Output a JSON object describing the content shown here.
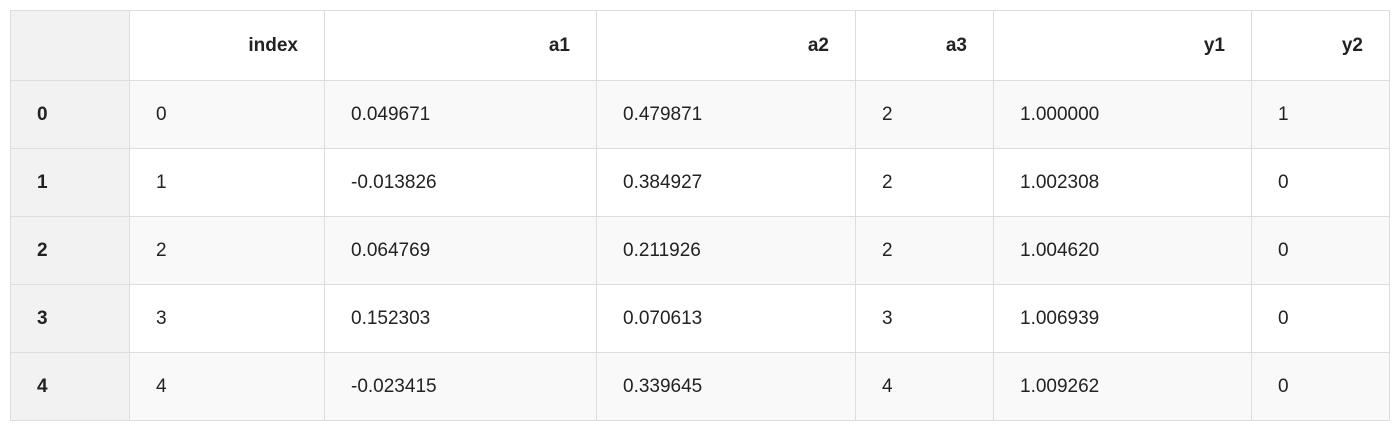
{
  "table": {
    "columns": [
      "",
      "index",
      "a1",
      "a2",
      "a3",
      "y1",
      "y2"
    ],
    "rows": [
      {
        "label": "0",
        "cells": [
          "0",
          "0.049671",
          "0.479871",
          "2",
          "1.000000",
          "1"
        ]
      },
      {
        "label": "1",
        "cells": [
          "1",
          "-0.013826",
          "0.384927",
          "2",
          "1.002308",
          "0"
        ]
      },
      {
        "label": "2",
        "cells": [
          "2",
          "0.064769",
          "0.211926",
          "2",
          "1.004620",
          "0"
        ]
      },
      {
        "label": "3",
        "cells": [
          "3",
          "0.152303",
          "0.070613",
          "3",
          "1.006939",
          "0"
        ]
      },
      {
        "label": "4",
        "cells": [
          "4",
          "-0.023415",
          "0.339645",
          "4",
          "1.009262",
          "0"
        ]
      }
    ]
  }
}
